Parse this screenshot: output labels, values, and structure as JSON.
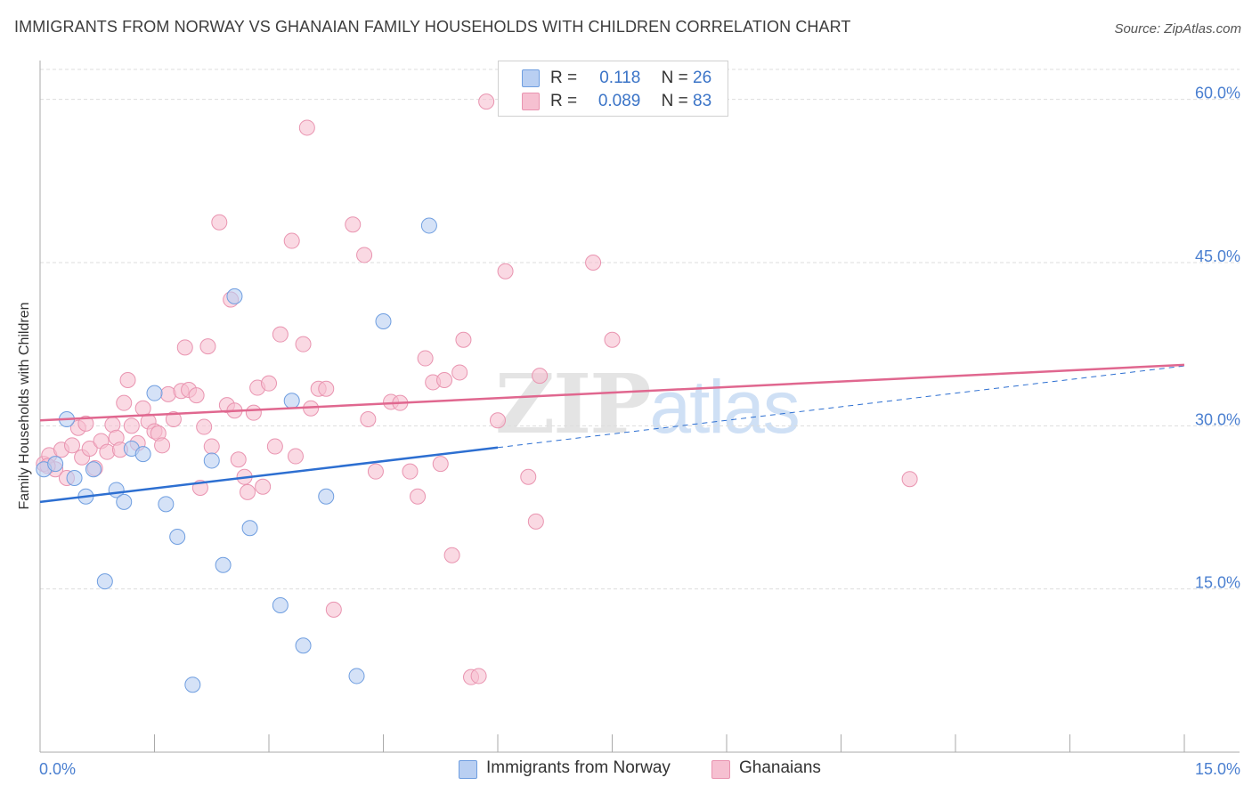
{
  "title": "IMMIGRANTS FROM NORWAY VS GHANAIAN FAMILY HOUSEHOLDS WITH CHILDREN CORRELATION CHART",
  "source": "Source: ZipAtlas.com",
  "watermark": {
    "zip": "ZIP",
    "atlas": "atlas"
  },
  "colors": {
    "blue_fill": "#b9cff2",
    "blue_stroke": "#6f9ee0",
    "blue_line": "#2d6fd1",
    "pink_fill": "#f6c0d1",
    "pink_stroke": "#e994b0",
    "pink_line": "#e0678f",
    "grid": "#dddddd",
    "axis": "#aaaaaa",
    "tick_label": "#4a7fd0"
  },
  "legend": {
    "rows": [
      {
        "r_label": "R = ",
        "r_value": "0.118",
        "n_label": "N = ",
        "n_value": "26"
      },
      {
        "r_label": "R = ",
        "r_value": "0.089",
        "n_label": "N = ",
        "n_value": "83"
      }
    ]
  },
  "bottom_legend": {
    "series1": "Immigrants from Norway",
    "series2": "Ghanaians"
  },
  "chart_data": {
    "type": "scatter",
    "title": "IMMIGRANTS FROM NORWAY VS GHANAIAN FAMILY HOUSEHOLDS WITH CHILDREN CORRELATION CHART",
    "xlabel": "",
    "ylabel": "Family Households with Children",
    "xlim": [
      0,
      15
    ],
    "ylim": [
      0,
      63
    ],
    "x_ticks": [
      0,
      1.5,
      3.0,
      4.5,
      6.0,
      7.5,
      9.0,
      10.5,
      12.0,
      13.5,
      15.0
    ],
    "x_tick_labels": {
      "0": "0.0%",
      "15": "15.0%"
    },
    "y_ticks": [
      15,
      30,
      45,
      60
    ],
    "y_tick_labels": [
      "15.0%",
      "30.0%",
      "45.0%",
      "60.0%"
    ],
    "series": [
      {
        "name": "Immigrants from Norway",
        "color": "blue",
        "R": 0.118,
        "N": 26,
        "trend": {
          "x0": 0,
          "y0": 23.0,
          "x_solid_end": 6.0,
          "x1": 15,
          "y1": 35.5
        },
        "points": [
          [
            0.05,
            26.0
          ],
          [
            0.2,
            26.5
          ],
          [
            0.35,
            30.6
          ],
          [
            0.45,
            25.2
          ],
          [
            0.6,
            23.5
          ],
          [
            0.7,
            26.0
          ],
          [
            0.85,
            15.7
          ],
          [
            1.0,
            24.1
          ],
          [
            1.1,
            23.0
          ],
          [
            1.2,
            27.9
          ],
          [
            1.35,
            27.4
          ],
          [
            1.5,
            33.0
          ],
          [
            1.65,
            22.8
          ],
          [
            1.8,
            19.8
          ],
          [
            2.25,
            26.8
          ],
          [
            2.4,
            17.2
          ],
          [
            2.55,
            41.9
          ],
          [
            2.75,
            20.6
          ],
          [
            3.15,
            13.5
          ],
          [
            3.3,
            32.3
          ],
          [
            3.45,
            9.8
          ],
          [
            3.75,
            23.5
          ],
          [
            4.15,
            7.0
          ],
          [
            4.5,
            39.6
          ],
          [
            5.1,
            48.4
          ],
          [
            2.0,
            6.2
          ]
        ]
      },
      {
        "name": "Ghanaians",
        "color": "pink",
        "R": 0.089,
        "N": 83,
        "trend": {
          "x0": 0,
          "y0": 30.5,
          "x1": 15,
          "y1": 35.6
        },
        "points": [
          [
            0.05,
            26.5
          ],
          [
            0.12,
            27.3
          ],
          [
            0.2,
            26.0
          ],
          [
            0.28,
            27.8
          ],
          [
            0.35,
            25.2
          ],
          [
            0.42,
            28.2
          ],
          [
            0.5,
            29.8
          ],
          [
            0.55,
            27.1
          ],
          [
            0.6,
            30.2
          ],
          [
            0.65,
            27.9
          ],
          [
            0.72,
            26.1
          ],
          [
            0.8,
            28.6
          ],
          [
            0.88,
            27.6
          ],
          [
            0.95,
            30.1
          ],
          [
            1.0,
            28.9
          ],
          [
            1.05,
            27.8
          ],
          [
            1.1,
            32.1
          ],
          [
            1.15,
            34.2
          ],
          [
            1.2,
            30.0
          ],
          [
            1.28,
            28.4
          ],
          [
            1.35,
            31.6
          ],
          [
            1.42,
            30.4
          ],
          [
            1.5,
            29.5
          ],
          [
            1.55,
            29.3
          ],
          [
            1.6,
            28.2
          ],
          [
            1.68,
            32.9
          ],
          [
            1.75,
            30.6
          ],
          [
            1.85,
            33.2
          ],
          [
            1.9,
            37.2
          ],
          [
            1.95,
            33.3
          ],
          [
            2.05,
            32.8
          ],
          [
            2.1,
            24.3
          ],
          [
            2.15,
            29.9
          ],
          [
            2.2,
            37.3
          ],
          [
            2.25,
            28.1
          ],
          [
            2.35,
            48.7
          ],
          [
            2.45,
            31.9
          ],
          [
            2.5,
            41.6
          ],
          [
            2.55,
            31.4
          ],
          [
            2.6,
            26.9
          ],
          [
            2.68,
            25.3
          ],
          [
            2.72,
            23.9
          ],
          [
            2.8,
            31.2
          ],
          [
            2.85,
            33.5
          ],
          [
            2.92,
            24.4
          ],
          [
            3.0,
            33.9
          ],
          [
            3.08,
            28.1
          ],
          [
            3.15,
            38.4
          ],
          [
            3.3,
            47.0
          ],
          [
            3.35,
            27.2
          ],
          [
            3.45,
            37.5
          ],
          [
            3.5,
            57.4
          ],
          [
            3.55,
            31.6
          ],
          [
            3.65,
            33.4
          ],
          [
            3.75,
            33.4
          ],
          [
            3.85,
            13.1
          ],
          [
            4.1,
            48.5
          ],
          [
            4.25,
            45.7
          ],
          [
            4.3,
            30.6
          ],
          [
            4.4,
            25.8
          ],
          [
            4.6,
            32.2
          ],
          [
            4.72,
            32.1
          ],
          [
            4.85,
            25.8
          ],
          [
            4.95,
            23.5
          ],
          [
            5.05,
            36.2
          ],
          [
            5.15,
            34.0
          ],
          [
            5.25,
            26.5
          ],
          [
            5.3,
            34.2
          ],
          [
            5.4,
            18.1
          ],
          [
            5.5,
            34.9
          ],
          [
            5.55,
            37.9
          ],
          [
            5.65,
            6.9
          ],
          [
            5.75,
            7.0
          ],
          [
            5.85,
            59.8
          ],
          [
            6.0,
            30.5
          ],
          [
            6.1,
            44.2
          ],
          [
            6.4,
            25.3
          ],
          [
            6.5,
            21.2
          ],
          [
            6.55,
            34.6
          ],
          [
            7.25,
            45.0
          ],
          [
            7.5,
            37.9
          ],
          [
            11.4,
            25.1
          ],
          [
            0.1,
            26.3
          ]
        ]
      }
    ]
  }
}
